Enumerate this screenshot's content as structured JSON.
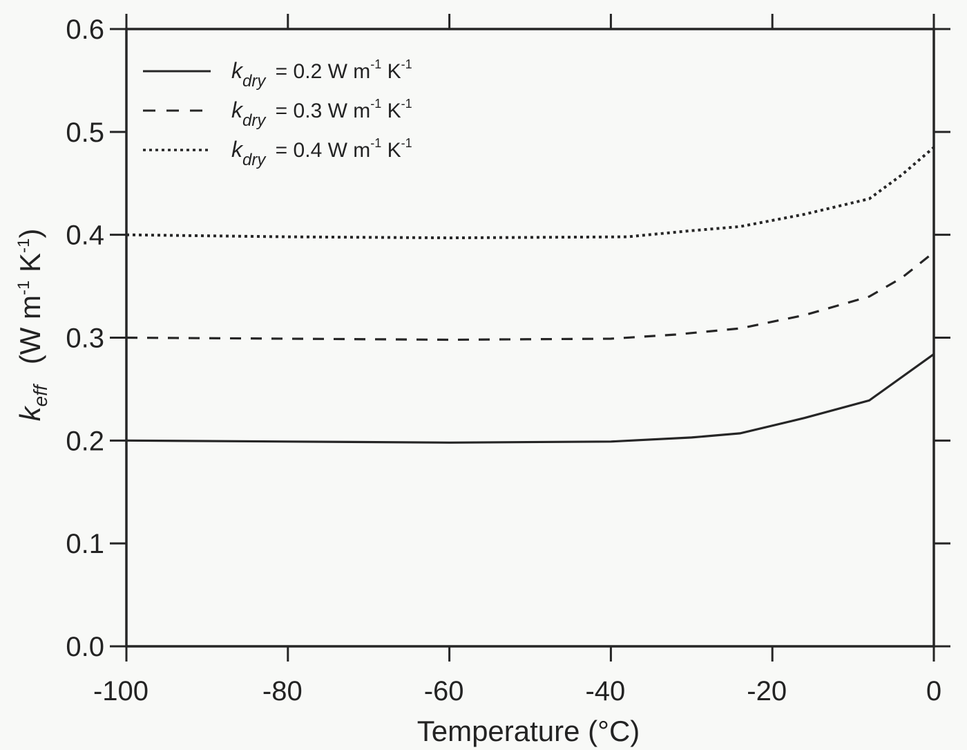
{
  "chart_data": {
    "type": "line",
    "title": "",
    "xlabel": "Temperature (°C)",
    "ylabel": "k_eff (W m^-1 K^-1)",
    "ylabel_parts": {
      "symbol": "k",
      "subscript": "eff",
      "units": "(W m",
      "units_exp1": "-1",
      "units_mid": " K",
      "units_exp2": "-1",
      "units_close": ")"
    },
    "xlim": [
      -100,
      0
    ],
    "ylim": [
      0.0,
      0.6
    ],
    "x_ticks": [
      -100,
      -80,
      -60,
      -40,
      -20,
      0
    ],
    "x_tick_labels": [
      "-100",
      "-80",
      "-60",
      "-40",
      "-20",
      "0"
    ],
    "y_ticks": [
      0.0,
      0.1,
      0.2,
      0.3,
      0.4,
      0.5,
      0.6
    ],
    "y_tick_labels": [
      "0.0",
      "0.1",
      "0.2",
      "0.3",
      "0.4",
      "0.5",
      "0.6"
    ],
    "grid": false,
    "legend_position": "upper left",
    "series": [
      {
        "name": "k_dry = 0.2 W m-1 K-1",
        "legend": {
          "symbol": "k",
          "subscript": "dry",
          "eq": "=",
          "value": "0.2 W m",
          "exp1": "-1",
          "mid": " K",
          "exp2": "-1"
        },
        "style": "solid",
        "x": [
          -100,
          -80,
          -60,
          -40,
          -30,
          -24,
          -16,
          -8,
          0
        ],
        "y": [
          0.2,
          0.199,
          0.198,
          0.199,
          0.203,
          0.207,
          0.222,
          0.239,
          0.284
        ]
      },
      {
        "name": "k_dry = 0.3 W m-1 K-1",
        "legend": {
          "symbol": "k",
          "subscript": "dry",
          "eq": "=",
          "value": "0.3 W m",
          "exp1": "-1",
          "mid": " K",
          "exp2": "-1"
        },
        "style": "dashed",
        "x": [
          -100,
          -80,
          -60,
          -40,
          -32,
          -24,
          -16,
          -8,
          -4,
          0
        ],
        "y": [
          0.3,
          0.299,
          0.298,
          0.299,
          0.303,
          0.309,
          0.322,
          0.34,
          0.358,
          0.383
        ]
      },
      {
        "name": "k_dry = 0.4 W m-1 K-1",
        "legend": {
          "symbol": "k",
          "subscript": "dry",
          "eq": "=",
          "value": "0.4 W m",
          "exp1": "-1",
          "mid": " K",
          "exp2": "-1"
        },
        "style": "dotted",
        "x": [
          -100,
          -80,
          -60,
          -38,
          -30,
          -24,
          -16,
          -8,
          -4,
          0
        ],
        "y": [
          0.4,
          0.398,
          0.397,
          0.398,
          0.404,
          0.408,
          0.42,
          0.435,
          0.458,
          0.485
        ]
      }
    ]
  },
  "colors": {
    "line": "#262626",
    "axis": "#262626",
    "background": "#f8f9f7"
  }
}
